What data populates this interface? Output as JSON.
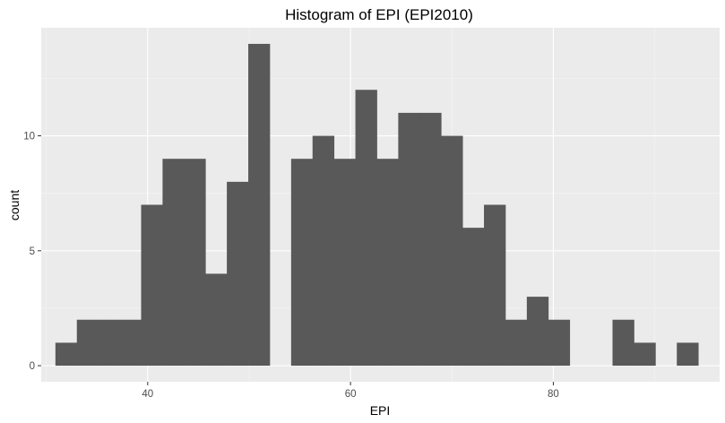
{
  "chart_data": {
    "type": "bar",
    "subtype": "histogram",
    "title": "Histogram of EPI (EPI2010)",
    "xlabel": "EPI",
    "ylabel": "count",
    "xlim": [
      29.5,
      96.4
    ],
    "ylim": [
      -0.7,
      14.7
    ],
    "x_ticks": [
      {
        "value": 40,
        "label": "40"
      },
      {
        "value": 60,
        "label": "60"
      },
      {
        "value": 80,
        "label": "80"
      }
    ],
    "y_ticks": [
      {
        "value": 0,
        "label": "0"
      },
      {
        "value": 5,
        "label": "5"
      },
      {
        "value": 10,
        "label": "10"
      }
    ],
    "bin_start": 30.9,
    "bin_width": 2.113,
    "counts": [
      1,
      2,
      2,
      2,
      7,
      9,
      9,
      4,
      8,
      14,
      0,
      9,
      10,
      9,
      12,
      9,
      11,
      11,
      10,
      6,
      7,
      2,
      3,
      2,
      0,
      0,
      2,
      1,
      0,
      1
    ],
    "grid": true,
    "legend": "none",
    "colors": {
      "panel_background": "#ebebeb",
      "grid_major": "#ffffff",
      "grid_minor": "#f5f5f5",
      "bar_fill": "#595959"
    }
  }
}
